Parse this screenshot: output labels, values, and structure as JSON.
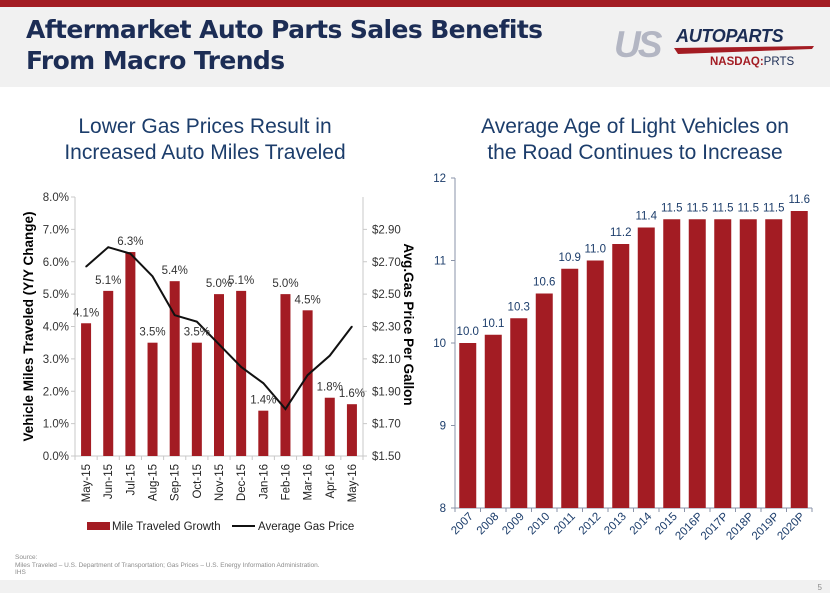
{
  "slide": {
    "title_line1": "Aftermarket Auto Parts Sales Benefits",
    "title_line2": "From Macro Trends",
    "logo_us": "US",
    "logo_autoparts": "AUTOPARTS",
    "logo_exchange": "NASDAQ:",
    "logo_ticker": "PRTS",
    "page_number": "5",
    "source_label": "Source:",
    "source_line1": "Miles Traveled – U.S. Department of Transportation; Gas Prices – U.S. Energy Information Administration.",
    "source_line2": "IHS",
    "colors": {
      "brand_red": "#a31c23",
      "brand_navy": "#1c2d55",
      "bar": "#a31c23",
      "line": "#111111"
    }
  },
  "chart_data": [
    {
      "type": "bar",
      "combo_line": true,
      "title_line1": "Lower Gas Prices Result in",
      "title_line2": "Increased Auto Miles Traveled",
      "categories": [
        "May-15",
        "Jun-15",
        "Jul-15",
        "Aug-15",
        "Sep-15",
        "Oct-15",
        "Nov-15",
        "Dec-15",
        "Jan-16",
        "Feb-16",
        "Mar-16",
        "Apr-16",
        "May-16"
      ],
      "series": [
        {
          "name": "Mile Traveled Growth",
          "type": "bar",
          "axis": "left",
          "values": [
            4.1,
            5.1,
            6.3,
            3.5,
            5.4,
            3.5,
            5.0,
            5.1,
            1.4,
            5.0,
            4.5,
            1.8,
            1.6
          ],
          "labels": [
            "4.1%",
            "5.1%",
            "6.3%",
            "3.5%",
            "5.4%",
            "3.5%",
            "5.0%",
            "5.1%",
            "1.4%",
            "5.0%",
            "4.5%",
            "1.8%",
            "1.6%"
          ]
        },
        {
          "name": "Average Gas Price",
          "type": "line",
          "axis": "right",
          "values": [
            2.67,
            2.79,
            2.75,
            2.61,
            2.37,
            2.33,
            2.19,
            2.05,
            1.95,
            1.79,
            2.0,
            2.12,
            2.3
          ]
        }
      ],
      "ylabel": "Vehicle Miles Traveled (Y/Y Change)",
      "ylim": [
        0,
        8
      ],
      "yticks": [
        "0.0%",
        "1.0%",
        "2.0%",
        "3.0%",
        "4.0%",
        "5.0%",
        "6.0%",
        "7.0%",
        "8.0%"
      ],
      "y2label": "Avg.Gas Price Per Gallon",
      "y2lim": [
        1.5,
        3.1
      ],
      "y2ticks": [
        "$1.50",
        "$1.70",
        "$1.90",
        "$2.10",
        "$2.30",
        "$2.50",
        "$2.70",
        "$2.90"
      ],
      "legend": [
        "Mile Traveled Growth",
        "Average Gas Price"
      ],
      "legend_position": "bottom",
      "grid": false
    },
    {
      "type": "bar",
      "title_line1": "Average Age of Light Vehicles on",
      "title_line2": "the Road Continues to Increase",
      "categories": [
        "2007",
        "2008",
        "2009",
        "2010",
        "2011",
        "2012",
        "2013",
        "2014",
        "2015",
        "2016P",
        "2017P",
        "2018P",
        "2019P",
        "2020P"
      ],
      "values": [
        10.0,
        10.1,
        10.3,
        10.6,
        10.9,
        11.0,
        11.2,
        11.4,
        11.5,
        11.5,
        11.5,
        11.5,
        11.5,
        11.6
      ],
      "labels": [
        "10.0",
        "10.1",
        "10.3",
        "10.6",
        "10.9",
        "11.0",
        "11.2",
        "11.4",
        "11.5",
        "11.5",
        "11.5",
        "11.5",
        "11.5",
        "11.6"
      ],
      "ylim": [
        8,
        12
      ],
      "yticks": [
        "8",
        "9",
        "10",
        "11",
        "12"
      ],
      "xlabel": "",
      "ylabel": "",
      "grid": false
    }
  ]
}
